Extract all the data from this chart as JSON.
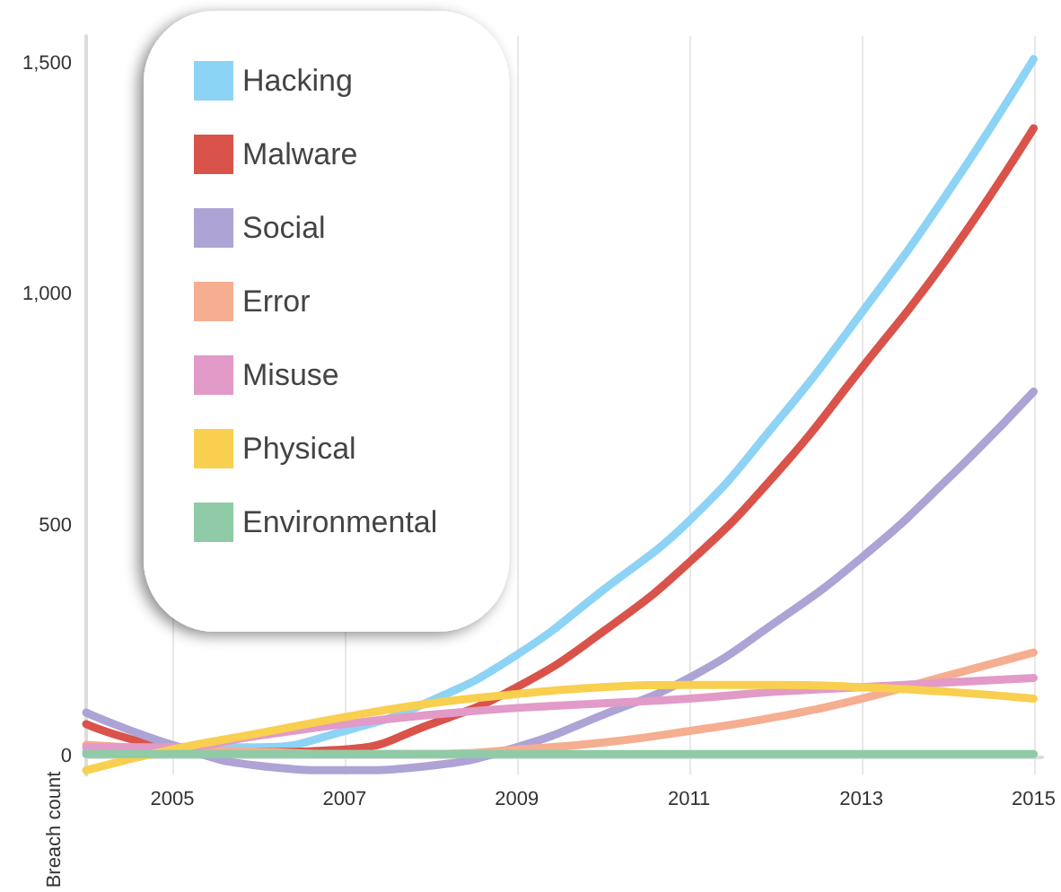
{
  "chart_data": {
    "type": "line",
    "ylabel": "Breach count",
    "x": [
      2004,
      2005,
      2006,
      2007,
      2008,
      2009,
      2010,
      2011,
      2012,
      2013,
      2014,
      2015
    ],
    "series": [
      {
        "name": "Hacking",
        "color": "#8dd3f5",
        "values": [
          10,
          20,
          20,
          55,
          120,
          220,
          360,
          510,
          720,
          960,
          1220,
          1510
        ]
      },
      {
        "name": "Malware",
        "color": "#d9534a",
        "values": [
          70,
          20,
          10,
          15,
          70,
          150,
          270,
          420,
          610,
          840,
          1080,
          1360
        ]
      },
      {
        "name": "Social",
        "color": "#ada3d4",
        "values": [
          95,
          25,
          -20,
          -30,
          -20,
          20,
          90,
          170,
          290,
          430,
          600,
          790
        ]
      },
      {
        "name": "Error",
        "color": "#f5ae90",
        "values": [
          25,
          15,
          10,
          5,
          5,
          15,
          30,
          55,
          85,
          125,
          175,
          225
        ]
      },
      {
        "name": "Misuse",
        "color": "#e29ac8",
        "values": [
          20,
          20,
          45,
          70,
          90,
          105,
          115,
          125,
          140,
          150,
          160,
          170
        ]
      },
      {
        "name": "Physical",
        "color": "#f8cf4f",
        "values": [
          -30,
          15,
          50,
          85,
          115,
          135,
          150,
          155,
          155,
          150,
          140,
          125
        ]
      },
      {
        "name": "Environmental",
        "color": "#8ecba6",
        "values": [
          5,
          5,
          5,
          5,
          5,
          5,
          5,
          5,
          5,
          5,
          5,
          5
        ]
      }
    ],
    "xlim": [
      2004,
      2015.1
    ],
    "xticks": [
      2005,
      2007,
      2009,
      2011,
      2013,
      2015
    ],
    "ylim": [
      -40,
      1560
    ],
    "yticks": [
      0,
      {
        "value": 500,
        "label": "500"
      },
      {
        "value": 1000,
        "label": "1,000"
      },
      {
        "value": 1500,
        "label": "1,500"
      }
    ],
    "grid": "x",
    "legend": "top left",
    "marker": "none",
    "line_style": "solid"
  }
}
